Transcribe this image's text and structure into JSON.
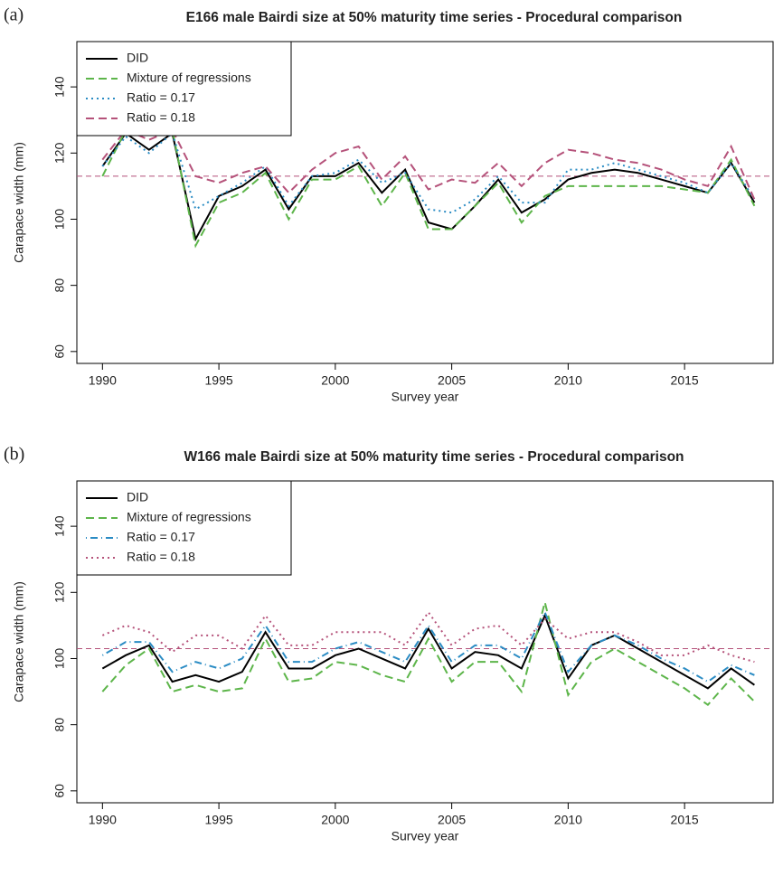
{
  "chart_data": [
    {
      "type": "line",
      "panel_label": "(a)",
      "title": "E166 male Bairdi size at 50% maturity time series - Procedural comparison",
      "x_label": "Survey year",
      "y_label": "Carapace width (mm)",
      "x": [
        1990,
        1991,
        1992,
        1993,
        1994,
        1995,
        1996,
        1997,
        1998,
        1999,
        2000,
        2001,
        2002,
        2003,
        2004,
        2005,
        2006,
        2007,
        2008,
        2009,
        2010,
        2011,
        2012,
        2013,
        2014,
        2015,
        2016,
        2017,
        2018
      ],
      "series": [
        {
          "name": "DID",
          "color": "#000000",
          "dash": "solid",
          "values": [
            116,
            126,
            121,
            126,
            94,
            107,
            110,
            115,
            103,
            113,
            113,
            117,
            108,
            115,
            99,
            97,
            104,
            112,
            102,
            106,
            112,
            114,
            115,
            114,
            112,
            110,
            108,
            117,
            105
          ]
        },
        {
          "name": "Mixture of regressions",
          "color": "#5db54a",
          "dash": "dashed",
          "values": [
            113,
            127,
            127,
            127,
            92,
            105,
            108,
            114,
            100,
            112,
            112,
            116,
            104,
            114,
            97,
            97,
            104,
            111,
            99,
            107,
            110,
            110,
            110,
            110,
            110,
            109,
            108,
            118,
            104
          ]
        },
        {
          "name": "Ratio = 0.17",
          "color": "#2b8cc4",
          "dash": "dotted",
          "values": [
            116,
            125,
            120,
            126,
            103,
            107,
            111,
            116,
            104,
            113,
            114,
            118,
            111,
            114,
            103,
            102,
            106,
            113,
            105,
            105,
            115,
            115,
            117,
            115,
            113,
            111,
            108,
            117,
            106
          ]
        },
        {
          "name": "Ratio = 0.18",
          "color": "#b5527a",
          "dash": "dashed",
          "values": [
            118,
            127,
            124,
            127,
            113,
            111,
            114,
            116,
            108,
            115,
            120,
            122,
            112,
            119,
            109,
            112,
            111,
            117,
            110,
            117,
            121,
            120,
            118,
            117,
            115,
            112,
            110,
            122,
            106
          ]
        }
      ],
      "hline": 113,
      "hline_color": "#b5527a",
      "xlim": [
        1988.9,
        2018.8
      ],
      "xticks": [
        1990,
        1995,
        2000,
        2005,
        2010,
        2015
      ],
      "ylim": [
        56.4,
        153.7
      ],
      "yticks": [
        60,
        80,
        100,
        120,
        140
      ],
      "legend": "top-left"
    },
    {
      "type": "line",
      "panel_label": "(b)",
      "title": "W166 male Bairdi size at 50% maturity time series - Procedural comparison",
      "x_label": "Survey year",
      "y_label": "Carapace width (mm)",
      "x": [
        1990,
        1991,
        1992,
        1993,
        1994,
        1995,
        1996,
        1997,
        1998,
        1999,
        2000,
        2001,
        2002,
        2003,
        2004,
        2005,
        2006,
        2007,
        2008,
        2009,
        2010,
        2011,
        2012,
        2013,
        2014,
        2015,
        2016,
        2017,
        2018
      ],
      "series": [
        {
          "name": "DID",
          "color": "#000000",
          "dash": "solid",
          "values": [
            97,
            101,
            104,
            93,
            95,
            93,
            96,
            108,
            97,
            97,
            101,
            103,
            100,
            97,
            109,
            97,
            102,
            101,
            97,
            113,
            94,
            104,
            107,
            103,
            99,
            95,
            91,
            97,
            92
          ]
        },
        {
          "name": "Mixture of regressions",
          "color": "#5db54a",
          "dash": "dashed",
          "values": [
            90,
            98,
            103,
            90,
            92,
            90,
            91,
            106,
            93,
            94,
            99,
            98,
            95,
            93,
            106,
            93,
            99,
            99,
            90,
            117,
            89,
            99,
            103,
            99,
            95,
            91,
            86,
            94,
            87
          ]
        },
        {
          "name": "Ratio = 0.17",
          "color": "#2b8cc4",
          "dash": "dotdash",
          "values": [
            101,
            105,
            105,
            96,
            99,
            97,
            100,
            110,
            99,
            99,
            103,
            105,
            102,
            99,
            110,
            99,
            104,
            104,
            100,
            114,
            96,
            104,
            107,
            104,
            100,
            97,
            93,
            98,
            95
          ]
        },
        {
          "name": "Ratio = 0.18",
          "color": "#b5527a",
          "dash": "dotted",
          "values": [
            107,
            110,
            108,
            102,
            107,
            107,
            103,
            113,
            104,
            104,
            108,
            108,
            108,
            104,
            114,
            104,
            109,
            110,
            104,
            112,
            106,
            108,
            108,
            105,
            101,
            101,
            104,
            101,
            99
          ]
        }
      ],
      "hline": 103,
      "hline_color": "#b5527a",
      "xlim": [
        1988.9,
        2018.8
      ],
      "xticks": [
        1990,
        1995,
        2000,
        2005,
        2010,
        2015
      ],
      "ylim": [
        56.4,
        153.7
      ],
      "yticks": [
        60,
        80,
        100,
        120,
        140
      ],
      "legend": "top-left"
    }
  ]
}
